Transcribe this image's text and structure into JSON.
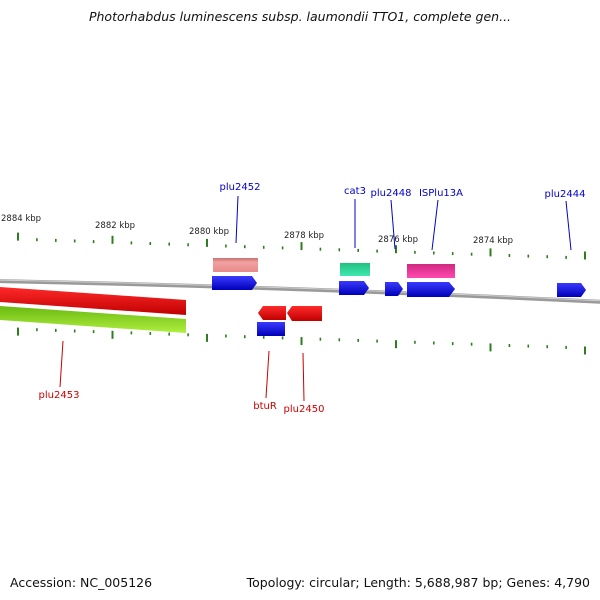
{
  "title": "Photorhabdus luminescens subsp. laumondii TTO1, complete gen...",
  "footer": {
    "accession": "Accession: NC_005126",
    "stats": "Topology: circular; Length: 5,688,987 bp; Genes: 4,790"
  },
  "colors": {
    "backbone": "#8c8c8c",
    "tick": "#2e7d1e",
    "label_forward": "#0000cc",
    "label_reverse": "#cc0000",
    "gene_blue": "#1010ee",
    "gene_red": "#ee1111",
    "gene_salmon": "#e89090",
    "gene_teal": "#28d69a",
    "gene_pink": "#ee3aa0",
    "gene_lime": "#9adf2a"
  },
  "kbp_labels": [
    "2884 kbp",
    "2882 kbp",
    "2880 kbp",
    "2878 kbp",
    "2876 kbp",
    "2874 kbp"
  ],
  "gene_labels": {
    "plu2452": "plu2452",
    "cat3": "cat3",
    "plu2448": "plu2448",
    "ISPlu13A": "ISPlu13A",
    "plu2444": "plu2444",
    "plu2453": "plu2453",
    "btuR": "btuR",
    "plu2450": "plu2450"
  }
}
